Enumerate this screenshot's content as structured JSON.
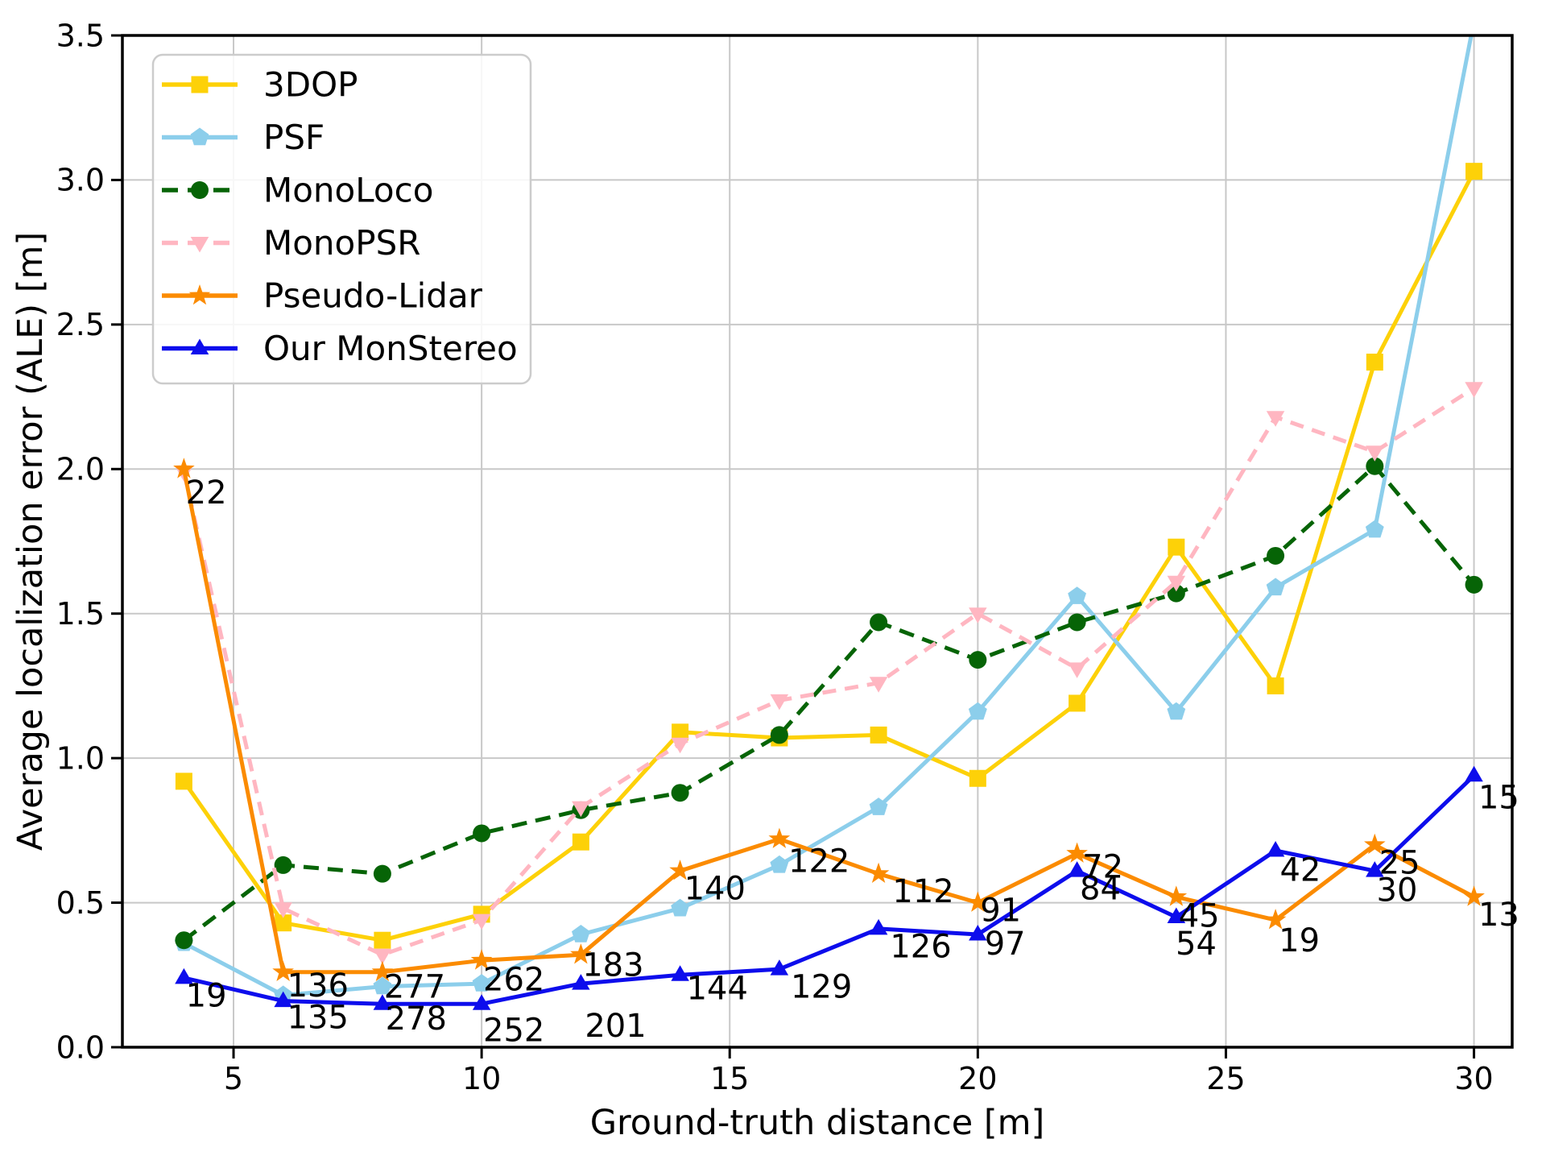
{
  "figure": {
    "background": "#ffffff",
    "grid_color": "#c8c8c8",
    "spine_color": "#000000",
    "annotation_color": "#000000",
    "legend_border_color": "#cccccc"
  },
  "chart_data": {
    "type": "line",
    "title": "",
    "xlabel": "Ground-truth distance [m]",
    "ylabel": "Average localization error (ALE) [m]",
    "xlim": [
      2.76,
      30.77
    ],
    "ylim": [
      0.0,
      3.5
    ],
    "grid": true,
    "legend_position": "upper left",
    "xticks": [
      {
        "value": 5,
        "label": "5"
      },
      {
        "value": 10,
        "label": "10"
      },
      {
        "value": 15,
        "label": "15"
      },
      {
        "value": 20,
        "label": "20"
      },
      {
        "value": 25,
        "label": "25"
      },
      {
        "value": 30,
        "label": "30"
      }
    ],
    "yticks": [
      {
        "value": 0.0,
        "label": "0.0"
      },
      {
        "value": 0.5,
        "label": "0.5"
      },
      {
        "value": 1.0,
        "label": "1.0"
      },
      {
        "value": 1.5,
        "label": "1.5"
      },
      {
        "value": 2.0,
        "label": "2.0"
      },
      {
        "value": 2.5,
        "label": "2.5"
      },
      {
        "value": 3.0,
        "label": "3.0"
      },
      {
        "value": 3.5,
        "label": "3.5"
      }
    ],
    "x": [
      4,
      6,
      8,
      10,
      12,
      14,
      16,
      18,
      20,
      22,
      24,
      26,
      28,
      30
    ],
    "series": [
      {
        "name": "3DOP",
        "color": "#fdd108",
        "marker": "square",
        "dash": null,
        "values": [
          0.92,
          0.43,
          0.37,
          0.46,
          0.71,
          1.09,
          1.07,
          1.08,
          0.93,
          1.19,
          1.73,
          1.25,
          2.37,
          3.03
        ]
      },
      {
        "name": "PSF",
        "color": "#8cceeb",
        "marker": "pentagon",
        "dash": null,
        "values": [
          0.36,
          0.18,
          0.21,
          0.22,
          0.39,
          0.48,
          0.63,
          0.83,
          1.16,
          1.56,
          1.16,
          1.59,
          1.79,
          3.55
        ]
      },
      {
        "name": "MonoLoco",
        "color": "#066406",
        "marker": "circle",
        "dash": [
          19,
          11
        ],
        "values": [
          0.37,
          0.63,
          0.6,
          0.74,
          0.82,
          0.88,
          1.08,
          1.47,
          1.34,
          1.47,
          1.57,
          1.7,
          2.01,
          1.6
        ]
      },
      {
        "name": "MonoPSR",
        "color": "#ffb6c1",
        "marker": "triangle-down",
        "dash": [
          17,
          11
        ],
        "values": [
          1.99,
          0.48,
          0.32,
          0.44,
          0.83,
          1.05,
          1.2,
          1.26,
          1.5,
          1.31,
          1.61,
          2.18,
          2.06,
          2.28
        ]
      },
      {
        "name": "Pseudo-Lidar",
        "color": "#fb8b00",
        "marker": "star",
        "dash": null,
        "values": [
          2.0,
          0.26,
          0.26,
          0.3,
          0.32,
          0.61,
          0.72,
          0.6,
          0.5,
          0.67,
          0.52,
          0.44,
          0.7,
          0.52
        ]
      },
      {
        "name": "Our MonStereo",
        "color": "#0d0dec",
        "marker": "triangle-up",
        "dash": null,
        "values": [
          0.24,
          0.16,
          0.15,
          0.15,
          0.22,
          0.25,
          0.27,
          0.41,
          0.39,
          0.61,
          0.45,
          0.68,
          0.61,
          0.94
        ]
      }
    ],
    "annotations": [
      {
        "text": "22",
        "x": 4.45,
        "y": 1.92
      },
      {
        "text": "19",
        "x": 4.45,
        "y": 0.18
      },
      {
        "text": "136",
        "x": 6.7,
        "y": 0.215
      },
      {
        "text": "135",
        "x": 6.7,
        "y": 0.105
      },
      {
        "text": "277",
        "x": 8.65,
        "y": 0.21
      },
      {
        "text": "278",
        "x": 8.68,
        "y": 0.1
      },
      {
        "text": "262",
        "x": 10.65,
        "y": 0.235
      },
      {
        "text": "252",
        "x": 10.65,
        "y": 0.06
      },
      {
        "text": "183",
        "x": 12.65,
        "y": 0.285
      },
      {
        "text": "201",
        "x": 12.7,
        "y": 0.075
      },
      {
        "text": "140",
        "x": 14.7,
        "y": 0.55
      },
      {
        "text": "144",
        "x": 14.75,
        "y": 0.205
      },
      {
        "text": "122",
        "x": 16.8,
        "y": 0.645
      },
      {
        "text": "129",
        "x": 16.85,
        "y": 0.21
      },
      {
        "text": "112",
        "x": 18.9,
        "y": 0.54
      },
      {
        "text": "126",
        "x": 18.85,
        "y": 0.35
      },
      {
        "text": "91",
        "x": 20.46,
        "y": 0.475
      },
      {
        "text": "97",
        "x": 20.55,
        "y": 0.36
      },
      {
        "text": "72",
        "x": 22.52,
        "y": 0.625
      },
      {
        "text": "84",
        "x": 22.47,
        "y": 0.55
      },
      {
        "text": "45",
        "x": 24.46,
        "y": 0.455
      },
      {
        "text": "54",
        "x": 24.4,
        "y": 0.36
      },
      {
        "text": "42",
        "x": 26.5,
        "y": 0.615
      },
      {
        "text": "19",
        "x": 26.48,
        "y": 0.37
      },
      {
        "text": "25",
        "x": 28.5,
        "y": 0.64
      },
      {
        "text": "30",
        "x": 28.45,
        "y": 0.545
      },
      {
        "text": "15",
        "x": 30.5,
        "y": 0.865
      },
      {
        "text": "13",
        "x": 30.5,
        "y": 0.46
      }
    ]
  }
}
